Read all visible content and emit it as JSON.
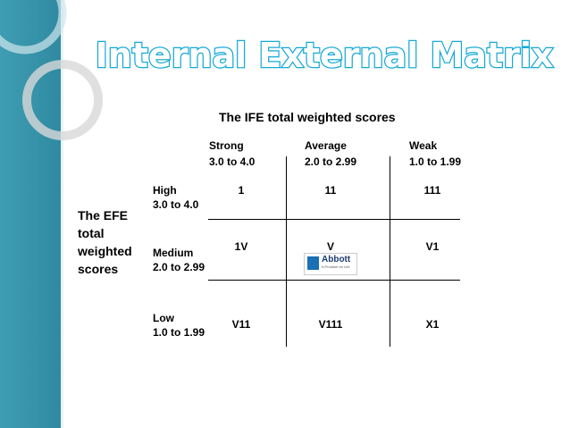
{
  "title": "Internal External Matrix",
  "ife_header": "The IFE total weighted scores",
  "columns": [
    {
      "name": "Strong",
      "range": "3.0 to 4.0"
    },
    {
      "name": "Average",
      "range": "2.0 to 2.99"
    },
    {
      "name": "Weak",
      "range": "1.0 to 1.99"
    }
  ],
  "efe_label": [
    "The EFE",
    "total",
    "weighted",
    "scores"
  ],
  "rows": [
    {
      "name": "High",
      "range": "3.0 to 4.0"
    },
    {
      "name": "Medium",
      "range": "2.0 to 2.99"
    },
    {
      "name": "Low",
      "range": "1.0 to 1.99"
    }
  ],
  "cells": [
    [
      "1",
      "11",
      "111"
    ],
    [
      "1V",
      "V",
      "V1"
    ],
    [
      "V11",
      "V111",
      "X1"
    ]
  ],
  "logo": {
    "name": "Abbott",
    "tagline": "A Promise for Life"
  }
}
